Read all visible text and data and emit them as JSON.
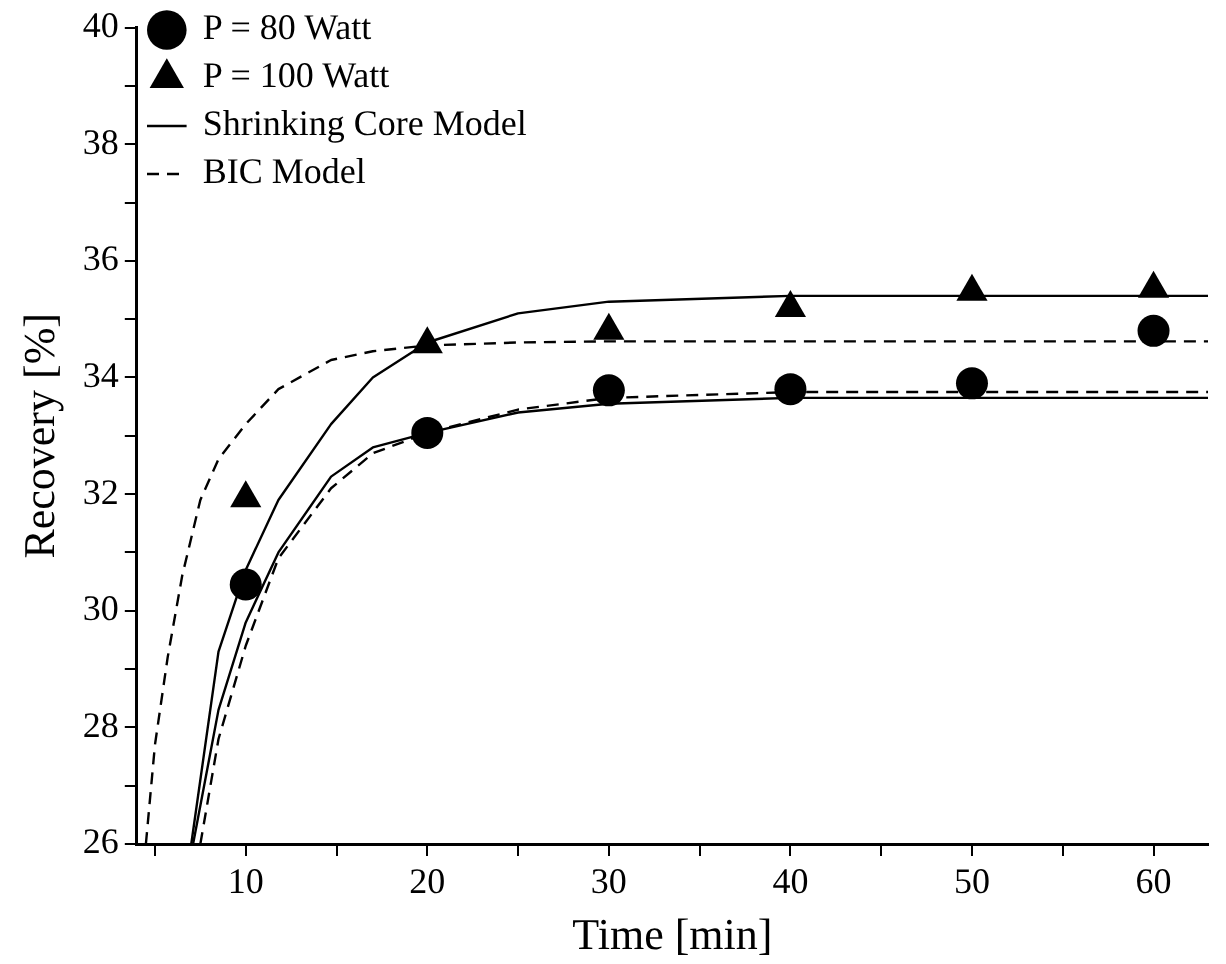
{
  "chart_data": {
    "type": "scatter",
    "xlabel": "Time [min]",
    "ylabel": "Recovery [%]",
    "x": [
      10,
      20,
      30,
      40,
      50,
      60
    ],
    "xlim": [
      4,
      63
    ],
    "xticks": [
      {
        "value": 5,
        "label": null
      },
      10,
      {
        "value": 15,
        "label": null
      },
      20,
      {
        "value": 25,
        "label": null
      },
      30,
      {
        "value": 35,
        "label": null
      },
      40,
      {
        "value": 45,
        "label": null
      },
      50,
      {
        "value": 55,
        "label": null
      },
      60
    ],
    "ylim": [
      26,
      40
    ],
    "yticks": [
      26,
      {
        "value": 27,
        "label": null
      },
      28,
      {
        "value": 29,
        "label": null
      },
      30,
      {
        "value": 31,
        "label": null
      },
      32,
      {
        "value": 33,
        "label": null
      },
      34,
      {
        "value": 35,
        "label": null
      },
      36,
      {
        "value": 37,
        "label": null
      },
      38,
      {
        "value": 39,
        "label": null
      },
      40
    ],
    "grid": false,
    "legend": "top left",
    "series": [
      {
        "name": "P = 80 Watt",
        "type": "scatter",
        "marker": "circle",
        "color": "#000000",
        "values": [
          30.45,
          33.05,
          33.78,
          33.8,
          33.9,
          34.8
        ]
      },
      {
        "name": "P = 100 Watt",
        "type": "scatter",
        "marker": "triangle",
        "color": "#000000",
        "values": [
          31.93,
          34.57,
          34.8,
          35.19,
          35.47,
          35.52
        ]
      },
      {
        "name": "Shrinking Core Model",
        "type": "line",
        "line_style": "solid",
        "marker": "none",
        "color": "#000000",
        "x": [
          7,
          8.5,
          10,
          11.8,
          14.7,
          17,
          20,
          25,
          30,
          40,
          50,
          63
        ],
        "values": [
          26,
          29.3,
          30.7,
          31.9,
          33.2,
          34.0,
          34.6,
          35.1,
          35.3,
          35.4,
          35.4,
          35.4
        ]
      },
      {
        "type": "line",
        "line_style": "solid",
        "marker": "none",
        "color": "#000000",
        "x": [
          7.1,
          8.5,
          10,
          11.8,
          14.7,
          17,
          20,
          25,
          30,
          40,
          50,
          63
        ],
        "values": [
          26,
          28.3,
          29.8,
          31.0,
          32.3,
          32.8,
          33.05,
          33.4,
          33.55,
          33.65,
          33.65,
          33.65
        ]
      },
      {
        "name": "BIC Model",
        "type": "line",
        "line_style": "dashed",
        "marker": "none",
        "color": "#000000",
        "x": [
          4.5,
          5,
          5.7,
          6.5,
          7.5,
          8.5,
          10,
          11.8,
          14.7,
          17,
          20,
          25,
          30,
          40,
          63
        ],
        "values": [
          26,
          27.7,
          29.2,
          30.6,
          31.9,
          32.6,
          33.2,
          33.8,
          34.3,
          34.45,
          34.55,
          34.6,
          34.62,
          34.62,
          34.62
        ]
      },
      {
        "type": "line",
        "line_style": "dashed",
        "marker": "none",
        "color": "#000000",
        "x": [
          7.5,
          8.5,
          10,
          11.8,
          14.7,
          17,
          20,
          25,
          30,
          40,
          50,
          63
        ],
        "values": [
          26,
          27.8,
          29.4,
          30.9,
          32.1,
          32.7,
          33.05,
          33.45,
          33.65,
          33.75,
          33.75,
          33.75
        ]
      }
    ]
  }
}
